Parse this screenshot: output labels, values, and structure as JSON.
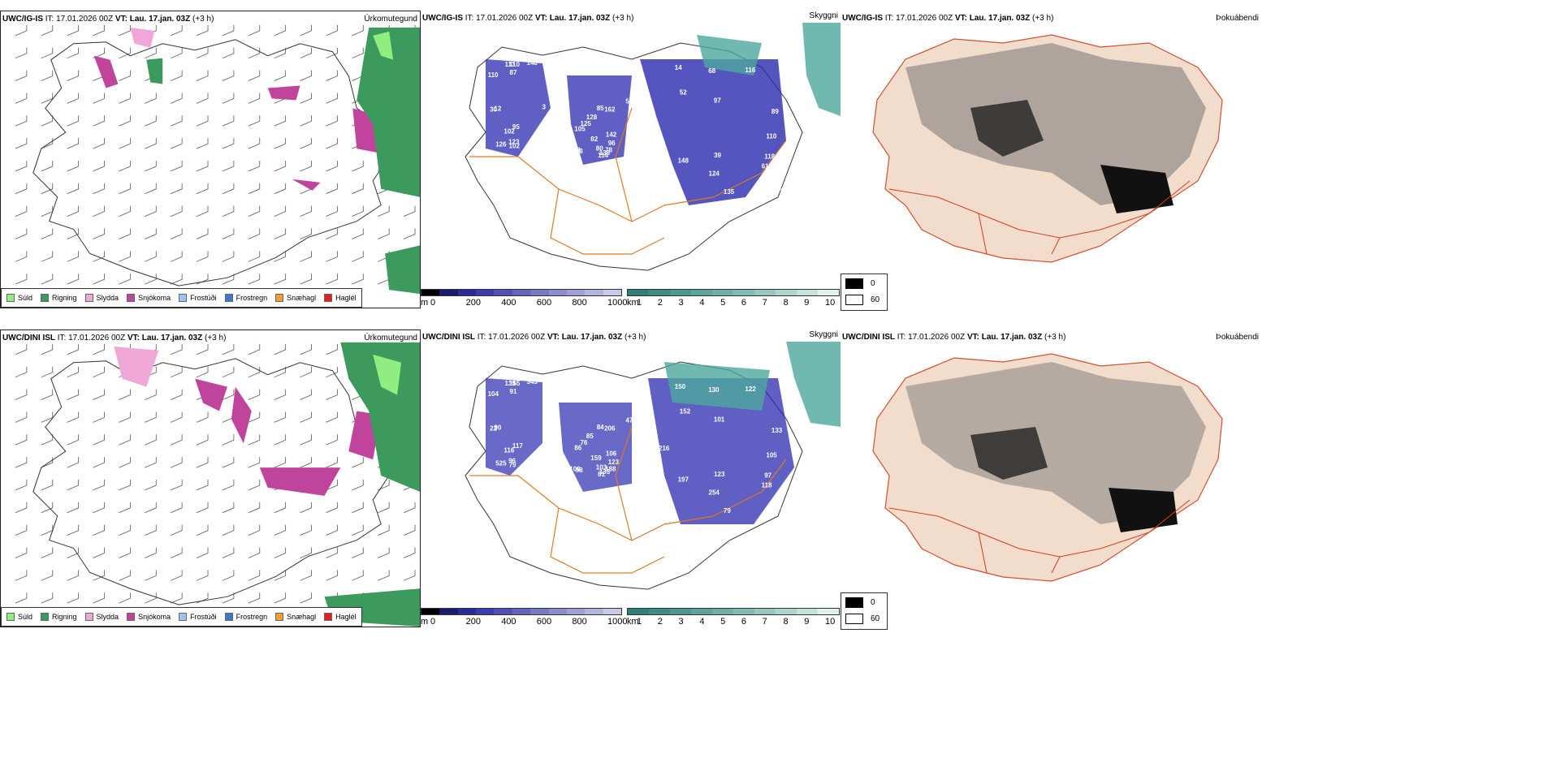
{
  "rows": [
    {
      "model_header": {
        "model": "UWC/IG-IS",
        "it_label": "IT:",
        "it_value": "17.01.2026 00Z",
        "vt_label": "VT:",
        "vt_value": "Lau. 17.jan. 03Z",
        "offset": "(+3 h)"
      },
      "panels": {
        "precip_type": {
          "title": "Úrkomutegund"
        },
        "visibility": {
          "title": "Skyggni",
          "labels": [
            "30",
            "85",
            "89",
            "12",
            "108",
            "88",
            "3",
            "80",
            "116",
            "7",
            "105",
            "68",
            "102",
            "128",
            "97",
            "95",
            "82",
            "14",
            "148",
            "96",
            "118",
            "102",
            "114",
            "110",
            "124",
            "125",
            "135",
            "87",
            "88",
            "52",
            "110",
            "162",
            "148",
            "126",
            "582",
            "61",
            "110",
            "138",
            "39",
            "113",
            "142",
            "124",
            "123",
            "78"
          ]
        },
        "fog": {
          "title": "Þokuábendi"
        }
      }
    },
    {
      "model_header": {
        "model": "UWC/DINI ISL",
        "it_label": "IT:",
        "it_value": "17.01.2026 00Z",
        "vt_label": "VT:",
        "vt_value": "Lau. 17.jan. 03Z",
        "offset": "(+3 h)"
      },
      "panels": {
        "precip_type": {
          "title": "Úrkomutegund"
        },
        "visibility": {
          "title": "Skyggni",
          "labels": [
            "22",
            "84",
            "133",
            "90",
            "100",
            "102",
            "56",
            "103",
            "122",
            "89",
            "86",
            "130",
            "116",
            "85",
            "101",
            "117",
            "159",
            "150",
            "343",
            "123",
            "97",
            "79",
            "81",
            "105",
            "107",
            "76",
            "79",
            "91",
            "98",
            "152",
            "155",
            "206",
            "197",
            "525",
            "475",
            "118",
            "104",
            "135",
            "123",
            "139",
            "106",
            "254",
            "96",
            "188",
            "216"
          ]
        },
        "fog": {
          "title": "Þokuábendi"
        }
      }
    }
  ],
  "precip_legend": [
    {
      "label": "Súld",
      "color": "#90ee80"
    },
    {
      "label": "Rigning",
      "color": "#3c9a5c"
    },
    {
      "label": "Slydda",
      "color": "#f0a8d8"
    },
    {
      "label": "Snjókoma",
      "color": "#c0449c"
    },
    {
      "label": "Frostúði",
      "color": "#9cc4ec"
    },
    {
      "label": "Frostregn",
      "color": "#3c78c8"
    },
    {
      "label": "Snæhagl",
      "color": "#f0a030"
    },
    {
      "label": "Haglél",
      "color": "#e02020"
    }
  ],
  "colorbar_m": {
    "unit": "m",
    "ticks": [
      "0",
      "200",
      "400",
      "600",
      "800",
      "1000"
    ],
    "colors": [
      "#000000",
      "#1a1a70",
      "#2a2a9a",
      "#3c3cb0",
      "#5050b8",
      "#6464c0",
      "#7878c8",
      "#8c8cd0",
      "#a0a0d8",
      "#b4b4e0",
      "#c8c8e8"
    ]
  },
  "colorbar_km": {
    "unit": "km",
    "ticks": [
      "1",
      "2",
      "3",
      "4",
      "5",
      "6",
      "7",
      "8",
      "9",
      "10"
    ],
    "colors": [
      "#2e8078",
      "#3c8c84",
      "#4a9890",
      "#5aa49c",
      "#6cb0a8",
      "#80bcb4",
      "#96c8c0",
      "#aed4ce",
      "#c6e2dc",
      "#e0f0ec"
    ]
  },
  "fog_legend": {
    "low": "0",
    "high": "60"
  },
  "colors": {
    "rain": "#3c9a5c",
    "drizzle": "#90ee80",
    "snow": "#c0449c",
    "sleet": "#f0a8d8",
    "roads": "#e07a20",
    "fog_land": "#f2dccc",
    "vis_blue": "#2a2ab0",
    "vis_teal": "#4da89c"
  }
}
